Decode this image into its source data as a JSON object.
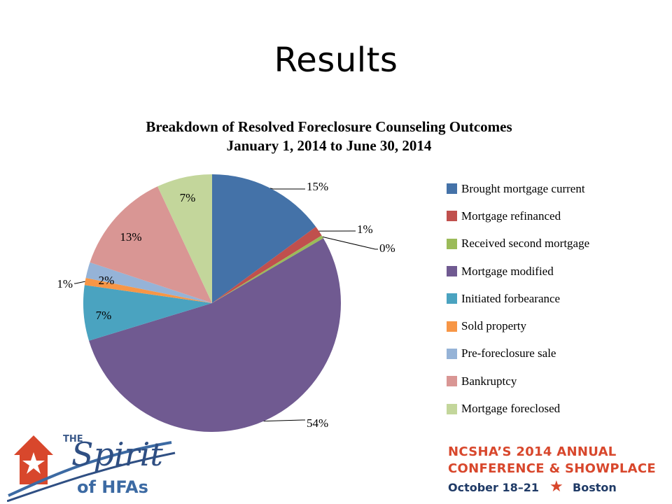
{
  "slide": {
    "title": "Results"
  },
  "chart_data": {
    "type": "pie",
    "title": "Breakdown of Resolved  Foreclosure Counseling Outcomes",
    "subtitle": "January 1, 2014 to June 30, 2014",
    "legend_position": "right",
    "categories": [
      "Brought mortgage current",
      "Mortgage refinanced",
      "Received second mortgage",
      "Mortgage modified",
      "Initiated forbearance",
      "Sold property",
      "Pre-foreclosure sale",
      "Bankruptcy",
      "Mortgage foreclosed"
    ],
    "values": [
      15,
      1.3,
      0.4,
      54,
      7,
      0.9,
      2,
      13,
      7
    ],
    "labels": [
      "15%",
      "1%",
      "0%",
      "54%",
      "7%",
      "1%",
      "2%",
      "13%",
      "7%"
    ],
    "colors": [
      "#4472a8",
      "#c0504d",
      "#9bbb59",
      "#705a91",
      "#4aa3c0",
      "#f79646",
      "#95b3d7",
      "#d99694",
      "#c3d69b"
    ]
  },
  "footer": {
    "logo": {
      "the": "THE",
      "spirit": "Spirit",
      "of": "of",
      "hfas": "HFAs"
    },
    "conference": {
      "line1": "NCSHA’S 2014 ANNUAL",
      "line2": "CONFERENCE & SHOWPLACE",
      "dates": "October 18–21",
      "city": "Boston"
    }
  }
}
